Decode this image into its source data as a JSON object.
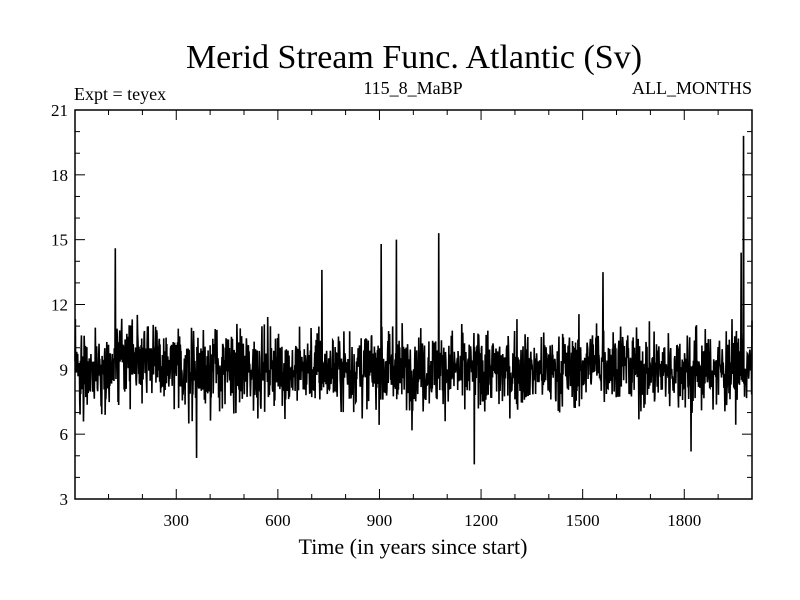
{
  "chart_data": {
    "type": "line",
    "title": "Merid Stream Func. Atlantic (Sv)",
    "subtitle_left": "Expt = teyex",
    "subtitle_center": "115_8_MaBP",
    "subtitle_right": "ALL_MONTHS",
    "xlabel": "Time (in years since start)",
    "ylabel": "",
    "xlim": [
      1,
      2000
    ],
    "ylim": [
      3,
      21
    ],
    "x_ticks": [
      300,
      600,
      900,
      1200,
      1500,
      1800
    ],
    "y_ticks": [
      3,
      6,
      9,
      12,
      15,
      18,
      21
    ],
    "grid": false,
    "series": [
      {
        "name": "Merid Stream Func. Atlantic",
        "color": "#000000",
        "mean": 9.0,
        "spikes": [
          {
            "x": 120,
            "y": 14.6
          },
          {
            "x": 360,
            "y": 4.9
          },
          {
            "x": 730,
            "y": 13.6
          },
          {
            "x": 905,
            "y": 14.8
          },
          {
            "x": 950,
            "y": 15.0
          },
          {
            "x": 1075,
            "y": 15.3
          },
          {
            "x": 1180,
            "y": 4.6
          },
          {
            "x": 1560,
            "y": 13.5
          },
          {
            "x": 1820,
            "y": 5.2
          },
          {
            "x": 1968,
            "y": 14.4
          },
          {
            "x": 1975,
            "y": 19.8
          }
        ]
      }
    ]
  }
}
